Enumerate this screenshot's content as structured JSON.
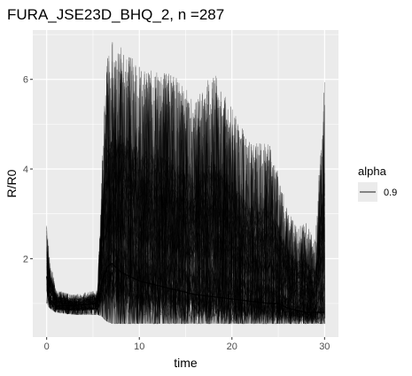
{
  "chart_data": {
    "type": "line",
    "title": "FURA_JSE23D_BHQ_2, n =287",
    "xlabel": "time",
    "ylabel": "R/R0",
    "xlim": [
      -1.5,
      31.5
    ],
    "ylim": [
      0.25,
      7.1
    ],
    "x_ticks": [
      0,
      10,
      20,
      30
    ],
    "x_tick_labels": [
      "0",
      "10",
      "20",
      "30"
    ],
    "y_ticks": [
      2,
      4,
      6
    ],
    "y_tick_labels": [
      "2",
      "4",
      "6"
    ],
    "grid": true,
    "legend_position": "right",
    "legend": {
      "title": "alpha",
      "entries": [
        {
          "label": "0.9",
          "color": "#000000"
        }
      ]
    },
    "colors": {
      "panel": "#ebebeb",
      "grid": "#ffffff",
      "line": "#000000"
    },
    "series_count": 287,
    "envelope": {
      "description_free": true,
      "time": [
        0,
        0.3,
        1,
        3,
        5.5,
        6,
        6.5,
        7,
        8,
        10,
        12,
        14,
        16,
        18,
        20,
        22,
        24,
        25,
        26,
        27,
        28,
        29,
        30
      ],
      "max": [
        2.8,
        2.1,
        1.3,
        1.2,
        1.3,
        4.5,
        6.4,
        6.9,
        6.8,
        6.3,
        6.2,
        6.1,
        5.5,
        6.2,
        5.4,
        4.6,
        4.6,
        3.9,
        3.1,
        2.7,
        2.8,
        2.4,
        6.1
      ],
      "median": [
        1.6,
        1.1,
        0.95,
        0.95,
        1.0,
        1.5,
        1.8,
        1.9,
        1.7,
        1.5,
        1.4,
        1.3,
        1.2,
        1.15,
        1.1,
        1.05,
        1.0,
        1.0,
        0.9,
        0.85,
        0.8,
        0.8,
        0.8
      ],
      "min": [
        1.0,
        0.9,
        0.8,
        0.75,
        0.75,
        0.7,
        0.6,
        0.55,
        0.55,
        0.55,
        0.55,
        0.55,
        0.55,
        0.55,
        0.55,
        0.55,
        0.55,
        0.55,
        0.55,
        0.55,
        0.55,
        0.55,
        0.55
      ]
    }
  }
}
